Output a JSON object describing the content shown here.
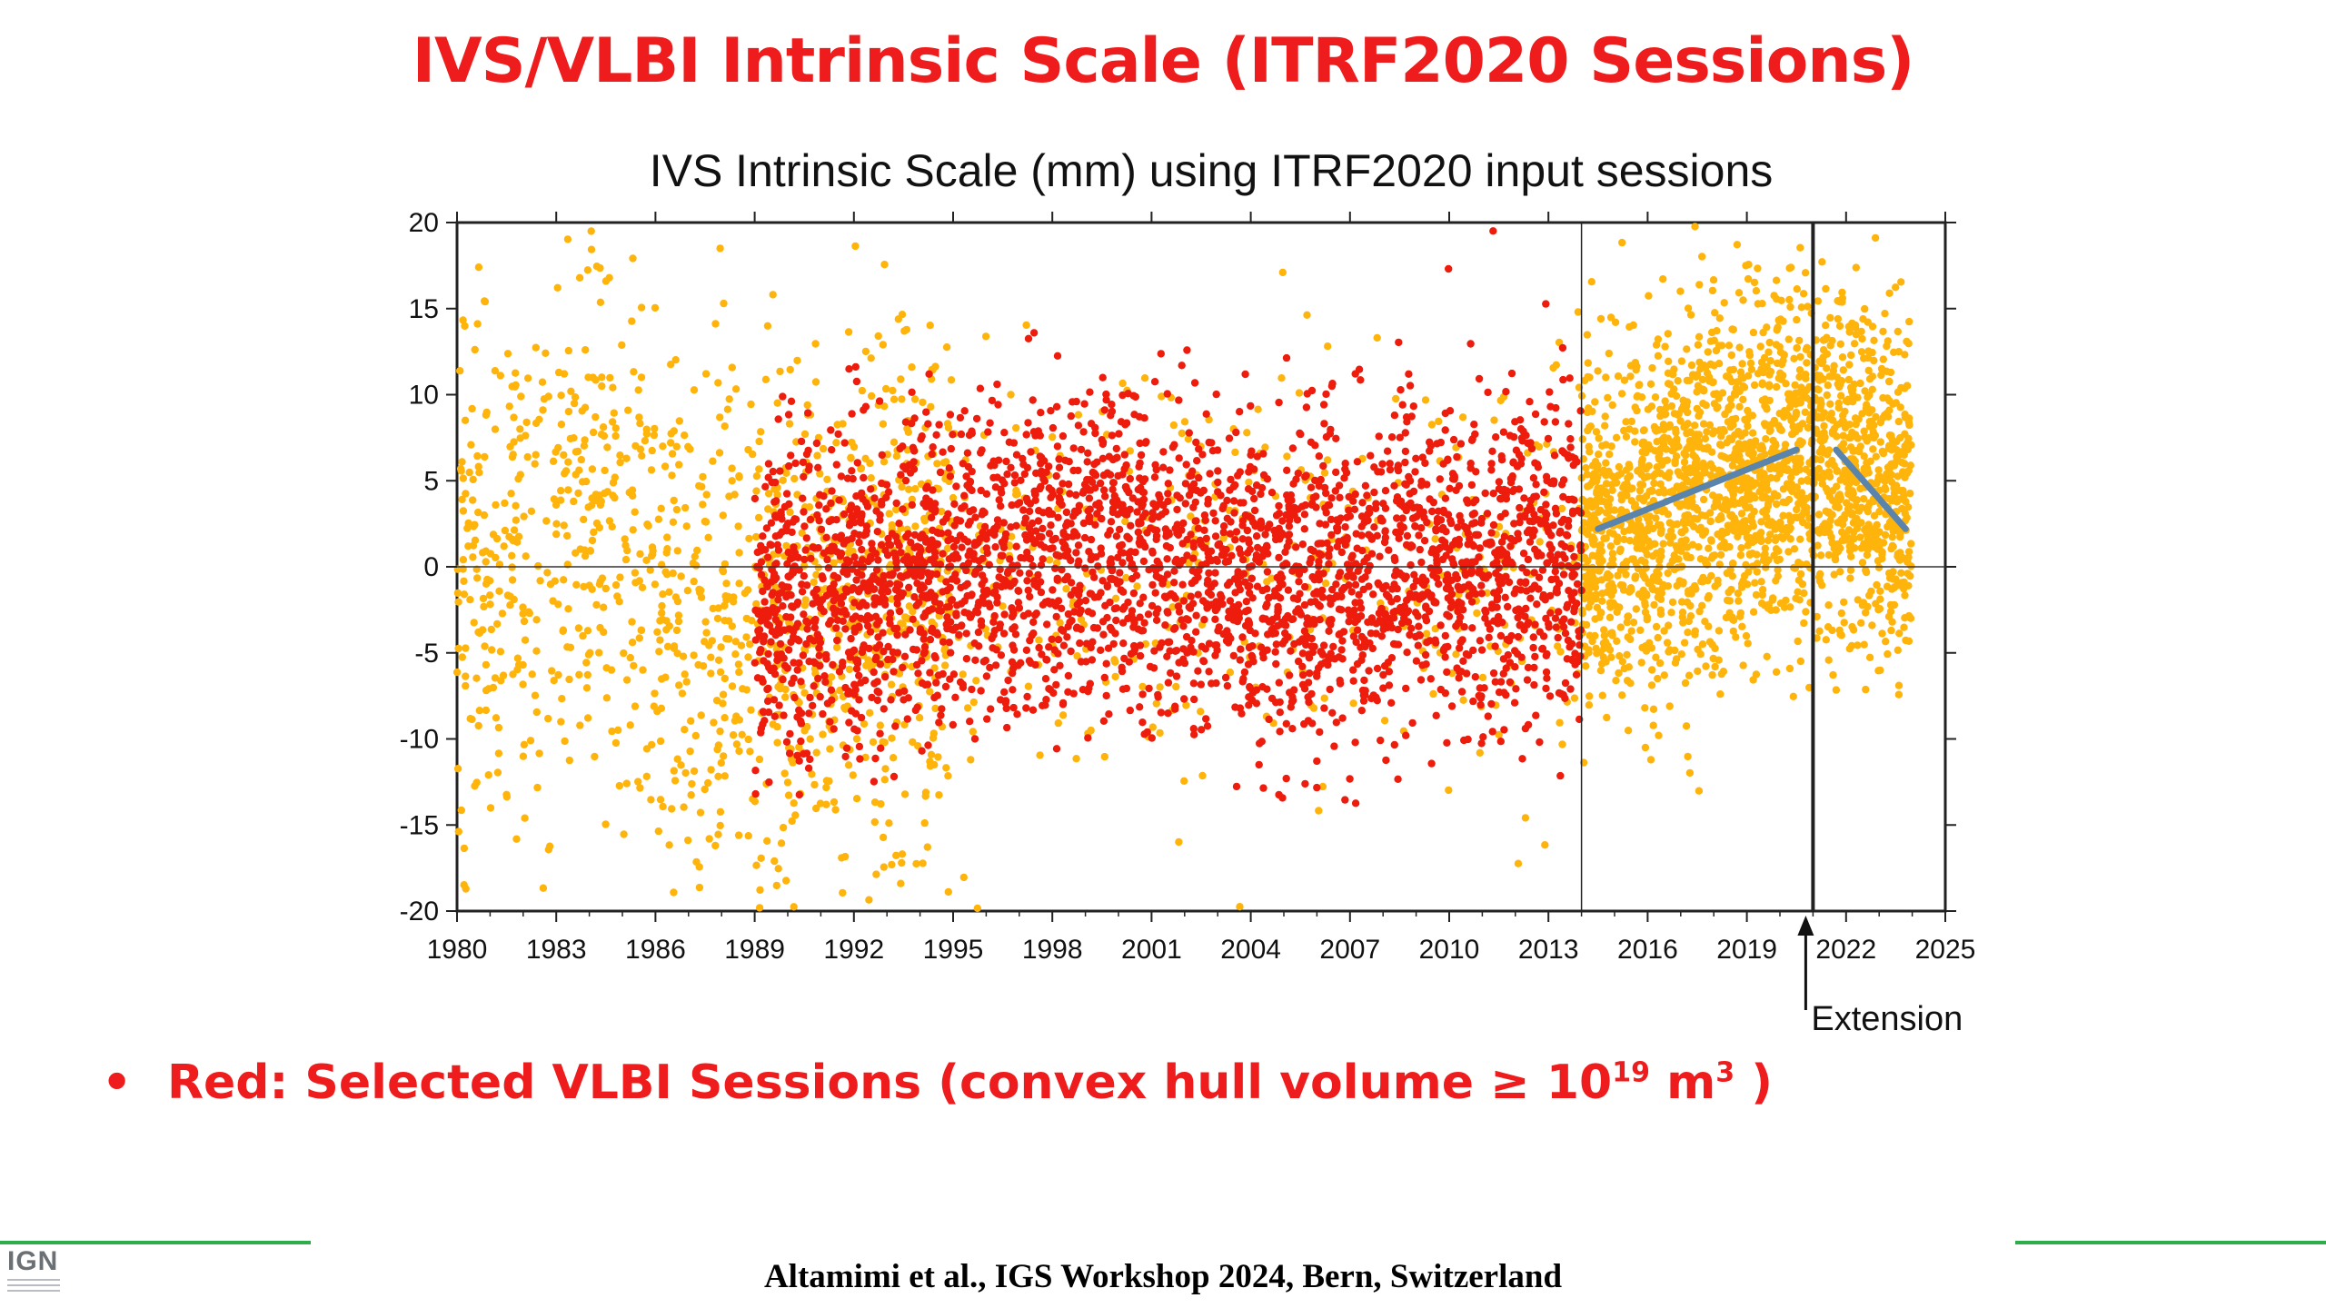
{
  "slide": {
    "title": "IVS/VLBI Intrinsic Scale (ITRF2020 Sessions)",
    "bullet_main": "Red: Selected VLBI Sessions (convex hull volume ≥  10",
    "bullet_exp1": "19",
    "bullet_mid": " m",
    "bullet_exp2": "3",
    "bullet_end": " )",
    "footer": "Altamimi et al., IGS Workshop 2024, Bern, Switzerland",
    "logo_text": "IGN"
  },
  "colors": {
    "title": "#ee1c1c",
    "selected": "#ee1c0c",
    "other": "#ffb40c",
    "trend": "#5b84ac",
    "footer_rule": "#2eae4a"
  },
  "chart_data": {
    "type": "scatter",
    "title": "IVS Intrinsic Scale (mm) using ITRF2020 input sessions",
    "xlabel": "",
    "ylabel": "",
    "xlim": [
      1980,
      2025
    ],
    "ylim": [
      -20,
      20
    ],
    "xticks": [
      1980,
      1983,
      1986,
      1989,
      1992,
      1995,
      1998,
      2001,
      2004,
      2007,
      2010,
      2013,
      2016,
      2019,
      2022,
      2025
    ],
    "yticks": [
      -20,
      -15,
      -10,
      -5,
      0,
      5,
      10,
      15,
      20
    ],
    "grid": false,
    "zero_line": true,
    "vlines": [
      {
        "x": 2014.0,
        "style": "thin"
      },
      {
        "x": 2021.0,
        "style": "bold"
      }
    ],
    "annotation": {
      "text": "Extension",
      "x": 2021.0
    },
    "trend_lines": [
      {
        "x": [
          2014.5,
          2020.5
        ],
        "y": [
          2.2,
          6.8
        ]
      },
      {
        "x": [
          2021.7,
          2023.8
        ],
        "y": [
          6.8,
          2.2
        ]
      }
    ],
    "series_summary": [
      {
        "color": "red",
        "x_range": [
          1989,
          2014
        ],
        "mean": [
          [
            1989,
            -3.0
          ],
          [
            1995,
            0.0
          ],
          [
            2000,
            1.5
          ],
          [
            2004,
            -1.0
          ],
          [
            2009,
            0.0
          ],
          [
            2014,
            0.5
          ]
        ],
        "spread_sd": 4.5,
        "count": 3200
      },
      {
        "color": "orange",
        "x_range": [
          1980,
          1995
        ],
        "mean": [
          [
            1980,
            -2.0
          ],
          [
            1984,
            3.0
          ],
          [
            1987,
            -4.0
          ],
          [
            1990,
            -3.5
          ],
          [
            1993,
            -1.0
          ],
          [
            1995,
            0.0
          ]
        ],
        "spread_sd": 8.0,
        "count": 1100
      },
      {
        "color": "orange",
        "x_range": [
          1989,
          2014
        ],
        "mean": [
          [
            1989,
            -2.0
          ],
          [
            2000,
            0.5
          ],
          [
            2014,
            0.5
          ]
        ],
        "spread_sd": 6.0,
        "count": 500
      },
      {
        "color": "orange",
        "x_range": [
          2014,
          2024
        ],
        "mean": [
          [
            2014,
            1.5
          ],
          [
            2017,
            3.5
          ],
          [
            2020.5,
            6.5
          ],
          [
            2021.5,
            6.5
          ],
          [
            2024,
            3.0
          ]
        ],
        "spread_sd": 5.0,
        "count": 2200
      }
    ]
  }
}
